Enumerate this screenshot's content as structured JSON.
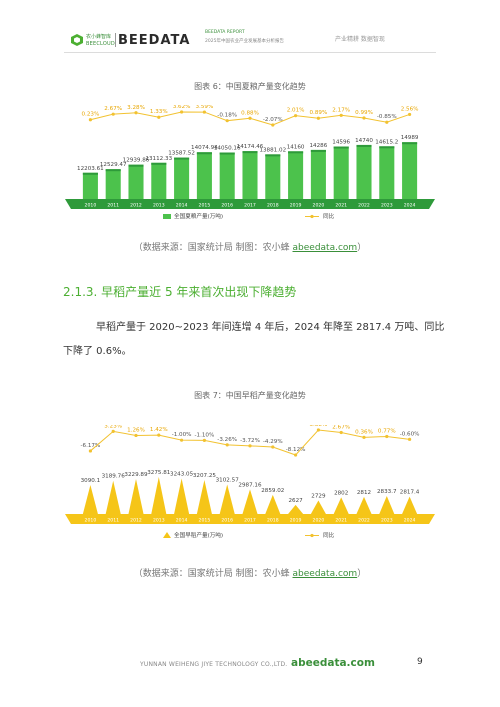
{
  "header": {
    "logo_cn": "农小蜂智库",
    "logo_en": "BEECLOUD",
    "brand": "BEEDATA",
    "report_title": "BEEDATA REPORT",
    "report_subtitle": "2025年中国农业产业发展基本分析报告",
    "tagline": "产业精耕 数据智现"
  },
  "figure6": {
    "title": "图表 6：中国夏粮产量变化趋势",
    "legend_bar": "全国夏粮产量(万吨)",
    "legend_line": "同比",
    "source_prefix": "（数据来源：国家统计局    制图：农小蜂 ",
    "source_link": "abeedata.com",
    "source_suffix": "）"
  },
  "section": {
    "title": "2.1.3. 早稻产量近 5 年来首次出现下降趋势"
  },
  "paragraph": {
    "line1": "早稻产量于 2020~2023 年间连增 4 年后，2024 年降至 2817.4 万吨、同比",
    "line2": "下降了 0.6%。"
  },
  "figure7": {
    "title": "图表 7：中国早稻产量变化趋势",
    "legend_bar": "全国早稻产量(万吨)",
    "legend_line": "同比",
    "source_prefix": "（数据来源：国家统计局    制图：农小蜂 ",
    "source_link": "abeedata.com",
    "source_suffix": "）"
  },
  "footer": {
    "company": "YUNNAN WEIHENG JIYE TECHNOLOGY CO.,LTD.",
    "site": "abeedata.com",
    "page": "9"
  },
  "colors": {
    "green_bar": "#4cc24c",
    "green_dark": "#2e9a3a",
    "yellow_bar": "#f5c518",
    "yellow_dark": "#d9a400",
    "line": "#f2c230",
    "accent": "#4caf32"
  },
  "chart_data": [
    {
      "type": "bar",
      "categories": [
        "2010",
        "2011",
        "2012",
        "2013",
        "2014",
        "2015",
        "2016",
        "2017",
        "2018",
        "2019",
        "2020",
        "2021",
        "2022",
        "2023",
        "2024"
      ],
      "series": [
        {
          "name": "全国夏粮产量(万吨)",
          "values": [
            12203.61,
            12529.47,
            12939.86,
            13112.33,
            13587.52,
            14074.94,
            14050.16,
            14174.46,
            13881.02,
            14160,
            14286,
            14596,
            14740,
            14615.2,
            14989
          ]
        },
        {
          "name": "同比",
          "type": "line",
          "values": [
            0.23,
            2.67,
            3.28,
            1.33,
            3.62,
            3.59,
            -0.18,
            0.88,
            -2.07,
            2.01,
            0.89,
            2.17,
            0.99,
            -0.85,
            2.56
          ]
        }
      ],
      "value_labels": [
        "12203.61",
        "12529.47",
        "12939.86",
        "13112.33",
        "13587.52",
        "14074.94",
        "14050.16",
        "14174.46",
        "13881.02",
        "14160",
        "14286",
        "14596",
        "14740",
        "14615.2",
        "14989"
      ],
      "pct_labels": [
        "0.23%",
        "2.67%",
        "3.28%",
        "1.33%",
        "3.62%",
        "3.59%",
        "-0.18%",
        "0.88%",
        "-2.07%",
        "2.01%",
        "0.89%",
        "2.17%",
        "0.99%",
        "-0.85%",
        "2.56%"
      ]
    },
    {
      "type": "bar",
      "categories": [
        "2010",
        "2011",
        "2012",
        "2013",
        "2014",
        "2015",
        "2016",
        "2017",
        "2018",
        "2019",
        "2020",
        "2021",
        "2022",
        "2023",
        "2024"
      ],
      "series": [
        {
          "name": "全国早稻产量(万吨)",
          "values": [
            3090.1,
            3189.76,
            3229.89,
            3275.81,
            3243.05,
            3207.25,
            3102.57,
            2987.16,
            2859.02,
            2627,
            2729,
            2802,
            2812,
            2833.7,
            2817.4
          ]
        },
        {
          "name": "同比",
          "type": "line",
          "values": [
            -6.17,
            3.23,
            1.26,
            1.42,
            -1.0,
            -1.1,
            -3.26,
            -3.72,
            -4.29,
            -8.12,
            3.88,
            2.67,
            0.36,
            0.77,
            -0.6
          ]
        }
      ],
      "value_labels": [
        "3090.1",
        "3189.76",
        "3229.89",
        "3275.81",
        "3243.05",
        "3207.25",
        "3102.57",
        "2987.16",
        "2859.02",
        "2627",
        "2729",
        "2802",
        "2812",
        "2833.7",
        "2817.4"
      ],
      "pct_labels": [
        "-6.17%",
        "3.23%",
        "1.26%",
        "1.42%",
        "-1.00%",
        "-1.10%",
        "-3.26%",
        "-3.72%",
        "-4.29%",
        "-8.12%",
        "3.88%",
        "2.67%",
        "0.36%",
        "0.77%",
        "-0.60%"
      ]
    }
  ]
}
